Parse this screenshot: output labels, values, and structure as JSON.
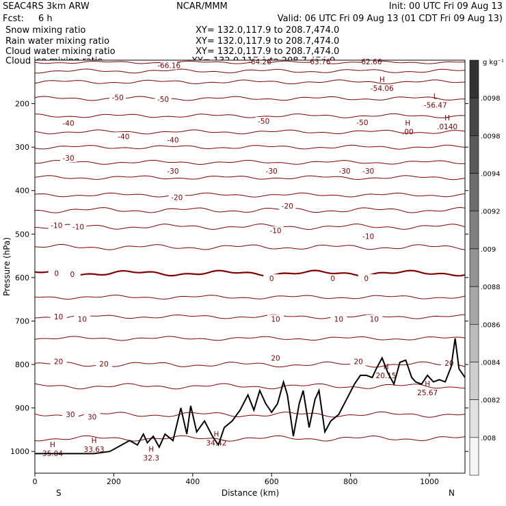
{
  "header": {
    "model": "SEAC4RS  3km ARW",
    "org": "NCAR/MMM",
    "init": "Init: 00 UTC Fri 09 Aug 13",
    "fcst_label": "Fcst:",
    "fcst_value": "6 h",
    "valid": "Valid: 06 UTC Fri 09 Aug 13 (01 CDT Fri 09 Aug 13)"
  },
  "fields": [
    {
      "name": "Snow mixing ratio",
      "color": "#000000",
      "xy": "XY= 132.0,117.9 to 208.7,474.0"
    },
    {
      "name": "Rain water mixing ratio",
      "color": "#e00000",
      "xy": "XY= 132.0,117.9 to 208.7,474.0"
    },
    {
      "name": "Cloud water mixing ratio",
      "color": "#1a1ad0",
      "xy": "XY= 132.0,117.9 to 208.7,474.0"
    },
    {
      "name": "Cloud ice mixing ratio",
      "color": "#000000",
      "xy": "XY= 132.0,117.9 to 208.7,474.0"
    }
  ],
  "colorbar": {
    "unit": "g kg⁻¹",
    "labels": [
      ".0098",
      ".0098",
      ".0094",
      ".0092",
      ".009",
      ".0088",
      ".0086",
      ".0084",
      ".0082",
      ".008"
    ]
  },
  "chart_data": {
    "type": "line",
    "title": "",
    "xlabel": "Distance (km)",
    "ylabel": "Pressure (hPa)",
    "xlim": [
      0,
      1090
    ],
    "ylim": [
      1050,
      100
    ],
    "x_ticks": [
      "0",
      "200",
      "400",
      "600",
      "800",
      "1000"
    ],
    "y_ticks": [
      "200",
      "300",
      "400",
      "500",
      "600",
      "700",
      "800",
      "900",
      "1000"
    ],
    "x_end_labels": {
      "left": "S",
      "right": "N"
    },
    "contour_color": "#800000",
    "isotherms": [
      {
        "value": -66,
        "base": 105,
        "amp": 2
      },
      {
        "value": -60,
        "base": 125,
        "amp": 3
      },
      {
        "value": -55,
        "base": 150,
        "amp": 3
      },
      {
        "value": -50,
        "base": 188,
        "amp": 3
      },
      {
        "value": -45,
        "base": 228,
        "amp": 3
      },
      {
        "value": -40,
        "base": 265,
        "amp": 3
      },
      {
        "value": -35,
        "base": 300,
        "amp": 3
      },
      {
        "value": -30,
        "base": 335,
        "amp": 3
      },
      {
        "value": -25,
        "base": 370,
        "amp": 3
      },
      {
        "value": -20,
        "base": 410,
        "amp": 3
      },
      {
        "value": -15,
        "base": 445,
        "amp": 4
      },
      {
        "value": -10,
        "base": 483,
        "amp": 4
      },
      {
        "value": -5,
        "base": 530,
        "amp": 4
      },
      {
        "value": 0,
        "base": 590,
        "amp": 4,
        "bold": true
      },
      {
        "value": 5,
        "base": 645,
        "amp": 3
      },
      {
        "value": 10,
        "base": 690,
        "amp": 3
      },
      {
        "value": 15,
        "base": 740,
        "amp": 3
      },
      {
        "value": 20,
        "base": 800,
        "amp": 4
      },
      {
        "value": 25,
        "base": 850,
        "amp": 4
      },
      {
        "value": 30,
        "base": 915,
        "amp": 4
      },
      {
        "value": 35,
        "base": 970,
        "amp": 4
      }
    ],
    "contour_labels": [
      {
        "text": "-66.16",
        "x": 340,
        "p": 112
      },
      {
        "text": "-64.26",
        "x": 570,
        "p": 103
      },
      {
        "text": "-63.76",
        "x": 720,
        "p": 103
      },
      {
        "text": "-62.66",
        "x": 850,
        "p": 103
      },
      {
        "text": "-50",
        "x": 210,
        "p": 186
      },
      {
        "text": "-50",
        "x": 325,
        "p": 190
      },
      {
        "text": "-50",
        "x": 580,
        "p": 240
      },
      {
        "text": "-50",
        "x": 830,
        "p": 243
      },
      {
        "text": "-40",
        "x": 85,
        "p": 245
      },
      {
        "text": "-40",
        "x": 225,
        "p": 275
      },
      {
        "text": "-40",
        "x": 350,
        "p": 283
      },
      {
        "text": "-30",
        "x": 85,
        "p": 325
      },
      {
        "text": "-30",
        "x": 350,
        "p": 355
      },
      {
        "text": "-30",
        "x": 600,
        "p": 355
      },
      {
        "text": "-30",
        "x": 785,
        "p": 355
      },
      {
        "text": "-30",
        "x": 845,
        "p": 355
      },
      {
        "text": "-20",
        "x": 360,
        "p": 415
      },
      {
        "text": "-20",
        "x": 640,
        "p": 435
      },
      {
        "text": "-10",
        "x": 55,
        "p": 480
      },
      {
        "text": "-10",
        "x": 110,
        "p": 483
      },
      {
        "text": "-10",
        "x": 610,
        "p": 492
      },
      {
        "text": "-10",
        "x": 845,
        "p": 505
      },
      {
        "text": "0",
        "x": 55,
        "p": 590
      },
      {
        "text": "0",
        "x": 95,
        "p": 592
      },
      {
        "text": "0",
        "x": 600,
        "p": 602
      },
      {
        "text": "0",
        "x": 755,
        "p": 602
      },
      {
        "text": "0",
        "x": 840,
        "p": 602
      },
      {
        "text": "10",
        "x": 60,
        "p": 690
      },
      {
        "text": "10",
        "x": 120,
        "p": 695
      },
      {
        "text": "10",
        "x": 610,
        "p": 695
      },
      {
        "text": "10",
        "x": 770,
        "p": 695
      },
      {
        "text": "10",
        "x": 860,
        "p": 695
      },
      {
        "text": "20",
        "x": 60,
        "p": 793
      },
      {
        "text": "20",
        "x": 175,
        "p": 798
      },
      {
        "text": "20",
        "x": 610,
        "p": 785
      },
      {
        "text": "20",
        "x": 820,
        "p": 793
      },
      {
        "text": "20",
        "x": 1050,
        "p": 797
      },
      {
        "text": "30",
        "x": 90,
        "p": 915
      },
      {
        "text": "30",
        "x": 145,
        "p": 920
      }
    ],
    "extrema": [
      {
        "mark": "H",
        "value": "-54.06",
        "x": 880,
        "p": 160
      },
      {
        "mark": "L",
        "value": "-56.47",
        "x": 1015,
        "p": 198
      },
      {
        "mark": "H",
        "value": ".0140",
        "x": 1045,
        "p": 248
      },
      {
        "mark": "H",
        "value": ".00",
        "x": 945,
        "p": 260
      },
      {
        "mark": "H",
        "value": "20.15",
        "x": 890,
        "p": 820
      },
      {
        "mark": "H",
        "value": "25.67",
        "x": 995,
        "p": 860
      },
      {
        "mark": "H",
        "value": "35.04",
        "x": 45,
        "p": 1000
      },
      {
        "mark": "H",
        "value": "33.63",
        "x": 150,
        "p": 990
      },
      {
        "mark": "H",
        "value": "32.3",
        "x": 295,
        "p": 1010
      },
      {
        "mark": "H",
        "value": "34.42",
        "x": 460,
        "p": 975
      }
    ],
    "terrain": {
      "x": [
        0,
        150,
        190,
        210,
        240,
        260,
        275,
        285,
        300,
        315,
        330,
        350,
        370,
        385,
        395,
        410,
        430,
        450,
        465,
        480,
        500,
        520,
        540,
        555,
        570,
        585,
        600,
        615,
        630,
        640,
        655,
        670,
        680,
        695,
        710,
        720,
        735,
        750,
        770,
        790,
        810,
        825,
        840,
        855,
        865,
        880,
        895,
        910,
        925,
        940,
        955,
        965,
        980,
        995,
        1010,
        1025,
        1040,
        1055,
        1065,
        1075,
        1090
      ],
      "p": [
        1005,
        1005,
        1000,
        990,
        975,
        985,
        960,
        980,
        965,
        990,
        960,
        975,
        900,
        960,
        895,
        955,
        930,
        965,
        985,
        945,
        930,
        905,
        870,
        905,
        860,
        890,
        910,
        890,
        840,
        870,
        965,
        890,
        860,
        945,
        880,
        860,
        955,
        930,
        915,
        880,
        845,
        825,
        825,
        830,
        810,
        785,
        820,
        845,
        795,
        790,
        830,
        840,
        845,
        825,
        840,
        835,
        840,
        805,
        740,
        810,
        830
      ]
    }
  }
}
